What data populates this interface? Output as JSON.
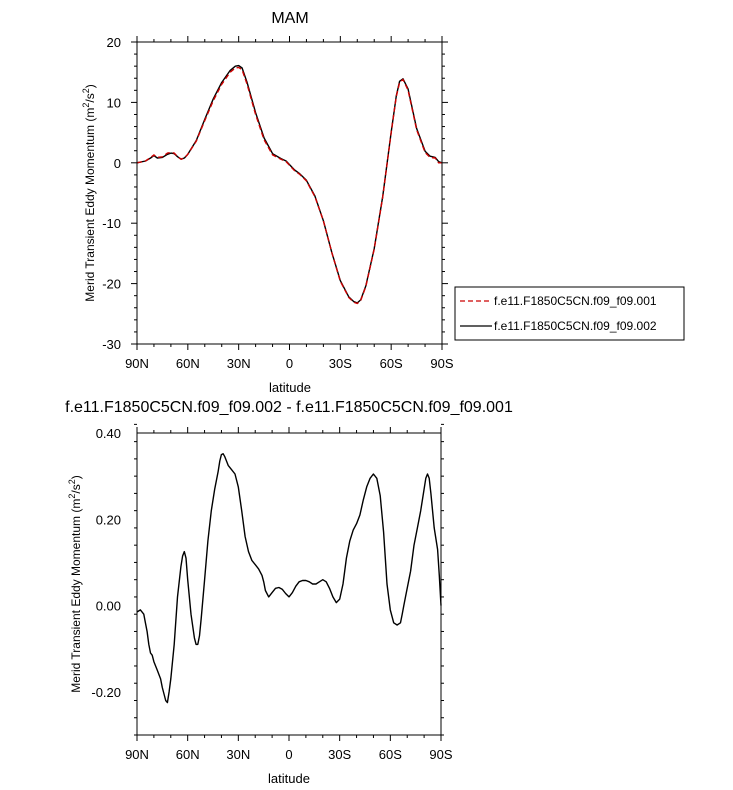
{
  "chart_data": [
    {
      "type": "line",
      "title": "MAM",
      "xlabel": "latitude",
      "ylabel": "Merid Transient Eddy Momentum (m",
      "ylabel_sup1": "2",
      "ylabel_mid": "/s",
      "ylabel_sup2": "2",
      "ylabel_end": ")",
      "xlim": [
        90,
        -90
      ],
      "ylim": [
        -30,
        20
      ],
      "x_ticks": [
        90,
        60,
        30,
        0,
        -30,
        -60,
        -90
      ],
      "x_tick_labels": [
        "90N",
        "60N",
        "30N",
        "0",
        "30S",
        "60S",
        "90S"
      ],
      "y_ticks": [
        20,
        10,
        0,
        -10,
        -20,
        -30
      ],
      "y_tick_labels": [
        "20",
        "10",
        "0",
        "-10",
        "-20",
        "-30"
      ],
      "legend_position": "right",
      "series": [
        {
          "name": "f.e11.F1850C5CN.f09_f09.001",
          "color": "#cc0000",
          "dash": "dashed",
          "x": [
            90,
            85,
            82,
            80,
            78,
            75,
            72,
            70,
            68,
            66,
            64,
            62,
            60,
            55,
            50,
            45,
            40,
            35,
            32,
            30,
            28,
            25,
            20,
            15,
            10,
            5,
            2,
            0,
            -3,
            -6,
            -10,
            -15,
            -20,
            -25,
            -30,
            -35,
            -38,
            -40,
            -42,
            -45,
            -50,
            -55,
            -60,
            -63,
            -65,
            -67,
            -70,
            -75,
            -80,
            -83,
            -86,
            -88,
            -90
          ],
          "y": [
            0.0,
            0.3,
            0.9,
            1.3,
            0.9,
            1.0,
            1.6,
            1.7,
            1.6,
            1.0,
            0.6,
            0.8,
            1.4,
            3.6,
            7.0,
            10.3,
            13.0,
            15.0,
            15.7,
            15.8,
            15.4,
            13.0,
            8.0,
            3.8,
            1.3,
            0.6,
            0.2,
            -0.4,
            -1.3,
            -1.9,
            -3.0,
            -5.6,
            -9.6,
            -14.9,
            -19.6,
            -22.3,
            -23.1,
            -23.3,
            -22.8,
            -20.5,
            -14.3,
            -5.7,
            5.0,
            11.0,
            13.3,
            13.8,
            12.0,
            5.5,
            1.7,
            0.9,
            0.8,
            0.0,
            0.0
          ]
        },
        {
          "name": "f.e11.F1850C5CN.f09_f09.002",
          "color": "#000000",
          "dash": "solid",
          "x": [
            90,
            85,
            82,
            80,
            78,
            75,
            72,
            70,
            68,
            66,
            64,
            62,
            60,
            55,
            50,
            45,
            40,
            35,
            32,
            30,
            28,
            25,
            20,
            15,
            10,
            5,
            2,
            0,
            -3,
            -6,
            -10,
            -15,
            -20,
            -25,
            -30,
            -35,
            -38,
            -40,
            -42,
            -45,
            -50,
            -55,
            -60,
            -63,
            -65,
            -67,
            -70,
            -75,
            -80,
            -83,
            -86,
            -88,
            -90
          ],
          "y": [
            0.0,
            0.3,
            0.8,
            1.2,
            0.8,
            0.9,
            1.4,
            1.6,
            1.5,
            1.0,
            0.6,
            0.8,
            1.4,
            3.7,
            7.2,
            10.6,
            13.3,
            15.3,
            16.0,
            16.1,
            15.7,
            13.3,
            8.3,
            4.1,
            1.5,
            0.7,
            0.3,
            -0.3,
            -1.2,
            -1.8,
            -2.9,
            -5.5,
            -9.6,
            -14.9,
            -19.5,
            -22.2,
            -23.0,
            -23.2,
            -22.7,
            -20.4,
            -14.2,
            -5.6,
            5.1,
            11.1,
            13.5,
            13.9,
            12.2,
            5.7,
            1.9,
            1.1,
            0.9,
            0.2,
            0.0
          ]
        }
      ]
    },
    {
      "type": "line",
      "title": "f.e11.F1850C5CN.f09_f09.002 - f.e11.F1850C5CN.f09_f09.001",
      "xlabel": "latitude",
      "ylabel": "Merid Transient Eddy Momentum (m",
      "ylabel_sup1": "2",
      "ylabel_mid": "/s",
      "ylabel_sup2": "2",
      "ylabel_end": ")",
      "xlim": [
        90,
        -90
      ],
      "ylim": [
        -0.3,
        0.4
      ],
      "x_ticks": [
        90,
        60,
        30,
        0,
        -30,
        -60,
        -90
      ],
      "x_tick_labels": [
        "90N",
        "60N",
        "30N",
        "0",
        "30S",
        "60S",
        "90S"
      ],
      "y_ticks": [
        0.4,
        0.2,
        0.0,
        -0.2
      ],
      "y_tick_labels": [
        "0.40",
        "0.20",
        "0.00",
        "-0.20"
      ],
      "series": [
        {
          "color": "#000000",
          "dash": "solid",
          "x": [
            90,
            88,
            86,
            85,
            84,
            83,
            82,
            81,
            80,
            78,
            76,
            75,
            74,
            73,
            72,
            71,
            70,
            68,
            66,
            64,
            63,
            62,
            61,
            60,
            58,
            56,
            55,
            54,
            53,
            52,
            50,
            48,
            46,
            44,
            42,
            41,
            40,
            39,
            38,
            36,
            34,
            32,
            30,
            28,
            26,
            24,
            22,
            20,
            18,
            16,
            15,
            14,
            12,
            10,
            8,
            6,
            4,
            2,
            0,
            -2,
            -4,
            -6,
            -8,
            -10,
            -12,
            -14,
            -16,
            -18,
            -20,
            -22,
            -24,
            -26,
            -28,
            -30,
            -32,
            -33,
            -34,
            -36,
            -38,
            -40,
            -42,
            -44,
            -46,
            -48,
            -50,
            -52,
            -54,
            -56,
            -57,
            -58,
            -60,
            -62,
            -64,
            -66,
            -67,
            -68,
            -69,
            -70,
            -72,
            -74,
            -76,
            -78,
            -80,
            -81,
            -82,
            -83,
            -84,
            -86,
            -88,
            -89,
            -90
          ],
          "y": [
            -0.015,
            -0.01,
            -0.02,
            -0.04,
            -0.06,
            -0.09,
            -0.11,
            -0.115,
            -0.13,
            -0.15,
            -0.17,
            -0.19,
            -0.205,
            -0.22,
            -0.225,
            -0.2,
            -0.17,
            -0.09,
            0.02,
            0.09,
            0.115,
            0.125,
            0.11,
            0.06,
            -0.02,
            -0.075,
            -0.09,
            -0.09,
            -0.07,
            -0.03,
            0.06,
            0.15,
            0.22,
            0.27,
            0.31,
            0.335,
            0.35,
            0.352,
            0.345,
            0.325,
            0.315,
            0.305,
            0.275,
            0.22,
            0.16,
            0.125,
            0.105,
            0.095,
            0.085,
            0.07,
            0.055,
            0.035,
            0.02,
            0.03,
            0.04,
            0.042,
            0.038,
            0.028,
            0.02,
            0.03,
            0.045,
            0.055,
            0.058,
            0.058,
            0.055,
            0.05,
            0.05,
            0.055,
            0.06,
            0.055,
            0.04,
            0.02,
            0.007,
            0.015,
            0.05,
            0.08,
            0.11,
            0.15,
            0.175,
            0.19,
            0.21,
            0.245,
            0.275,
            0.295,
            0.305,
            0.295,
            0.255,
            0.17,
            0.11,
            0.05,
            -0.01,
            -0.04,
            -0.045,
            -0.04,
            -0.02,
            0.0,
            0.02,
            0.04,
            0.08,
            0.14,
            0.18,
            0.22,
            0.27,
            0.295,
            0.305,
            0.295,
            0.26,
            0.18,
            0.13,
            0.07,
            0.0
          ]
        }
      ]
    }
  ]
}
